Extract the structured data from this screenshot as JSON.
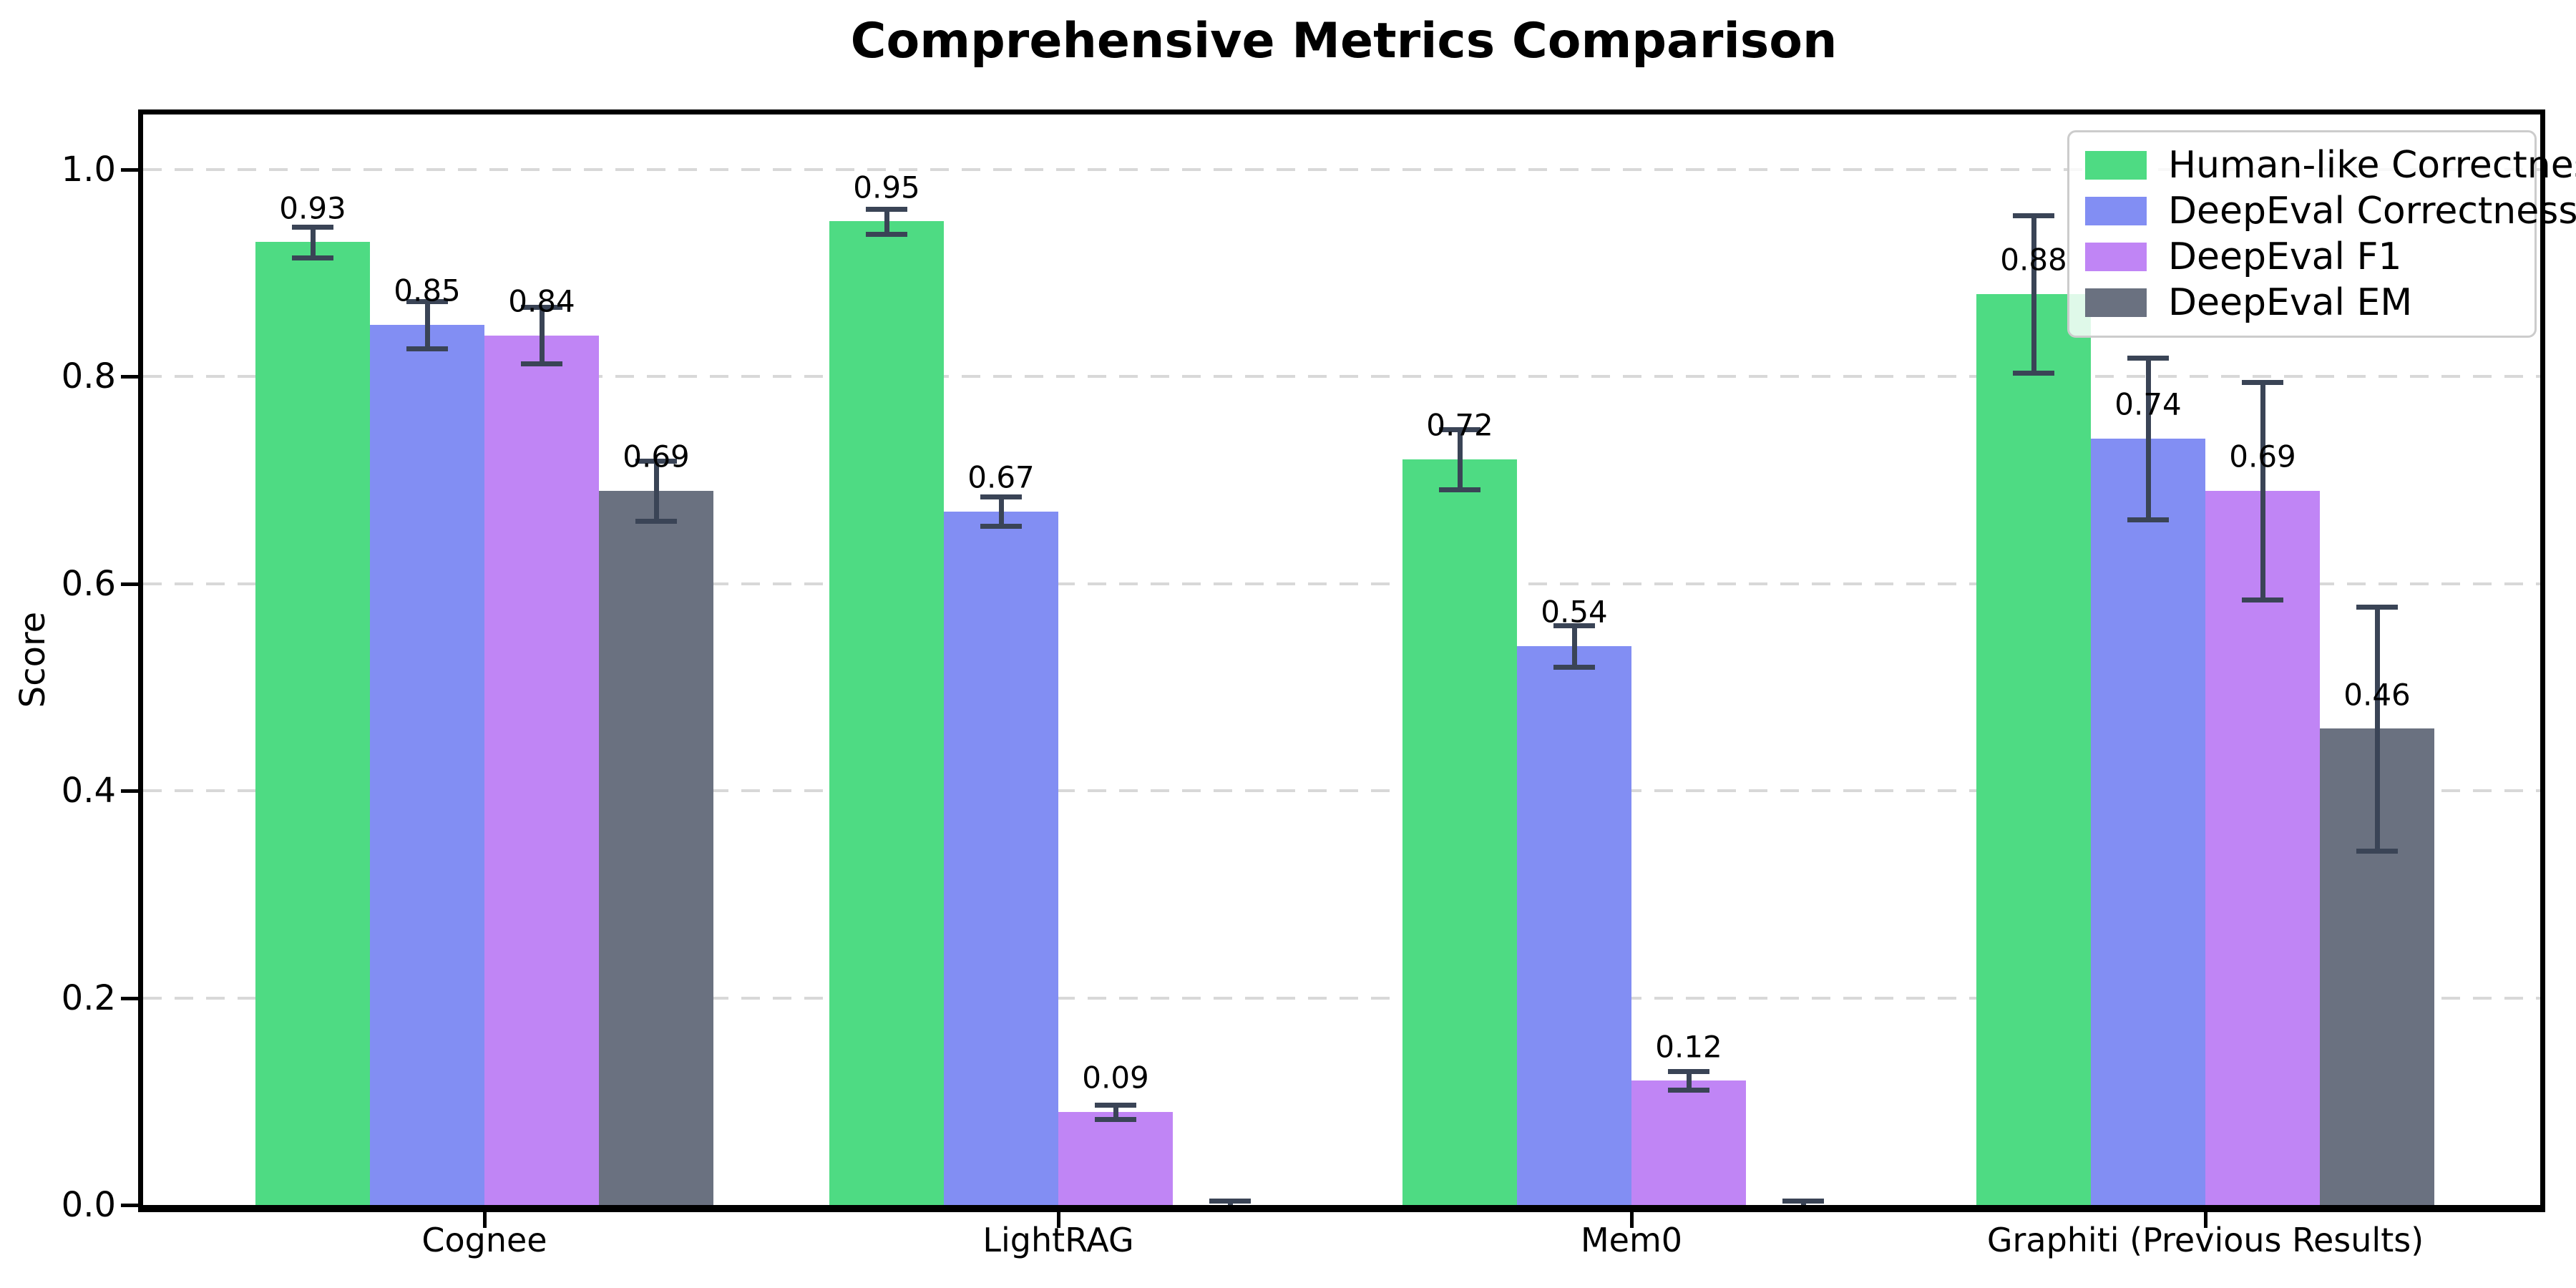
{
  "figure": {
    "title": "Comprehensive Metrics Comparison",
    "ylabel": "Score"
  },
  "chart_data": {
    "type": "bar",
    "title": "Comprehensive Metrics Comparison",
    "xlabel": "",
    "ylabel": "Score",
    "categories": [
      "Cognee",
      "LightRAG",
      "Mem0",
      "Graphiti (Previous Results)"
    ],
    "series": [
      {
        "name": "Human-like Correctness",
        "color": "#4edb83",
        "values": [
          0.93,
          0.95,
          0.72,
          0.88
        ],
        "errors": [
          0.015,
          0.012,
          0.029,
          0.076
        ],
        "labels": [
          "0.93",
          "0.95",
          "0.72",
          "0.88"
        ]
      },
      {
        "name": "DeepEval Correctness",
        "color": "#828ef3",
        "values": [
          0.85,
          0.67,
          0.54,
          0.74
        ],
        "errors": [
          0.023,
          0.014,
          0.02,
          0.078
        ],
        "labels": [
          "0.85",
          "0.67",
          "0.54",
          "0.74"
        ]
      },
      {
        "name": "DeepEval F1",
        "color": "#c085f5",
        "values": [
          0.84,
          0.09,
          0.12,
          0.69
        ],
        "errors": [
          0.027,
          0.007,
          0.009,
          0.105
        ],
        "labels": [
          "0.84",
          "0.09",
          "0.12",
          "0.69"
        ]
      },
      {
        "name": "DeepEval EM",
        "color": "#6a7180",
        "values": [
          0.69,
          0.0,
          0.0,
          0.46
        ],
        "errors": [
          0.029,
          0.004,
          0.004,
          0.118
        ],
        "labels": [
          "0.69",
          "",
          "",
          "0.46"
        ]
      }
    ],
    "ytick_labels": [
      "0.0",
      "0.2",
      "0.4",
      "0.6",
      "0.8",
      "1.0"
    ],
    "ytick_values": [
      0,
      0.2,
      0.4,
      0.6,
      0.8,
      1.0
    ],
    "ylim": [
      0,
      1.053
    ],
    "grid": {
      "axis": "y",
      "style": "dashed",
      "color": "#d8d8d8"
    },
    "legend": {
      "position": "upper right"
    },
    "errorbar_color": "#3a4456",
    "background": "#ffffff"
  }
}
